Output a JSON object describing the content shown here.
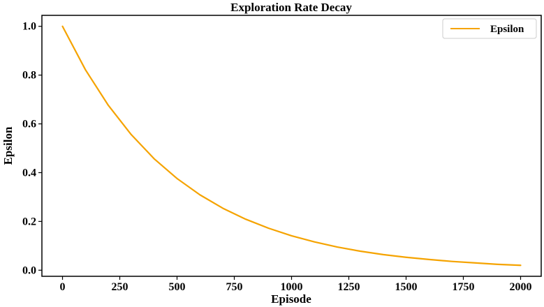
{
  "chart_data": {
    "type": "line",
    "title": "Exploration Rate Decay",
    "xlabel": "Episode",
    "ylabel": "Epsilon",
    "xlim": [
      -90,
      2090
    ],
    "ylim": [
      -0.025,
      1.045
    ],
    "xticks": [
      0,
      250,
      500,
      750,
      1000,
      1250,
      1500,
      1750,
      2000
    ],
    "yticks": [
      0.0,
      0.2,
      0.4,
      0.6,
      0.8,
      1.0
    ],
    "xtick_labels": [
      "0",
      "250",
      "500",
      "750",
      "1000",
      "1250",
      "1500",
      "1750",
      "2000"
    ],
    "ytick_labels": [
      "0.0",
      "0.2",
      "0.4",
      "0.6",
      "0.8",
      "1.0"
    ],
    "grid": false,
    "legend_position": "top-right",
    "series": [
      {
        "name": "Epsilon",
        "color": "#f5a300",
        "x": [
          0,
          100,
          200,
          300,
          400,
          500,
          600,
          700,
          800,
          900,
          1000,
          1100,
          1200,
          1300,
          1400,
          1500,
          1600,
          1700,
          1800,
          1900,
          2000
        ],
        "y": [
          1.0,
          0.822,
          0.676,
          0.556,
          0.457,
          0.376,
          0.309,
          0.254,
          0.209,
          0.172,
          0.141,
          0.116,
          0.095,
          0.078,
          0.064,
          0.053,
          0.044,
          0.036,
          0.03,
          0.024,
          0.02
        ]
      }
    ]
  }
}
